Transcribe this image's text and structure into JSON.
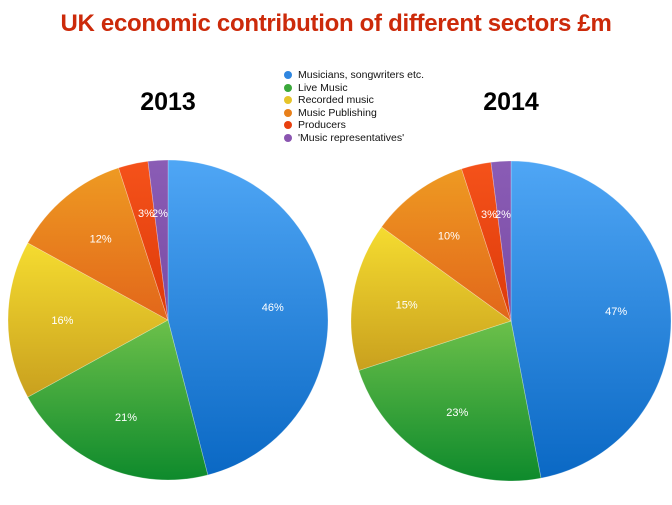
{
  "chart_data": [
    {
      "type": "pie",
      "title": "2013",
      "categories": [
        "Musicians, songwriters etc.",
        "Live Music",
        "Recorded music",
        "Music Publishing",
        "Producers",
        "'Music representatives'"
      ],
      "values": [
        46,
        21,
        16,
        12,
        3,
        2
      ],
      "labels": [
        "46%",
        "21%",
        "16%",
        "12%",
        "3%",
        "2%"
      ],
      "start": "top",
      "direction": "clockwise"
    },
    {
      "type": "pie",
      "title": "2014",
      "categories": [
        "Musicians, songwriters etc.",
        "Live Music",
        "Recorded music",
        "Music Publishing",
        "Producers",
        "'Music representatives'"
      ],
      "values": [
        47,
        23,
        15,
        10,
        3,
        2
      ],
      "labels": [
        "47%",
        "23%",
        "15%",
        "10%",
        "3%",
        "2%"
      ],
      "start": "top",
      "direction": "clockwise"
    }
  ],
  "title": "UK economic contribution of different sectors £m",
  "legend": {
    "placement": "top-center",
    "items": [
      {
        "label": "Musicians, songwriters etc.",
        "color": "#2f86e0"
      },
      {
        "label": "Live Music",
        "color": "#3aa83a"
      },
      {
        "label": "Recorded music",
        "color": "#e6c42a"
      },
      {
        "label": "Music Publishing",
        "color": "#e8801a"
      },
      {
        "label": "Producers",
        "color": "#e8400f"
      },
      {
        "label": "'Music representatives'",
        "color": "#8a55b0"
      }
    ]
  },
  "colors": {
    "title": "#cc2a0a",
    "slices": [
      {
        "light": "#4fa6f5",
        "dark": "#0a68c4"
      },
      {
        "light": "#6cc04a",
        "dark": "#0e8a2c"
      },
      {
        "light": "#f5dc30",
        "dark": "#c9a01e"
      },
      {
        "light": "#ee9a22",
        "dark": "#e2661a"
      },
      {
        "light": "#f5521a",
        "dark": "#dd3a0a"
      },
      {
        "light": "#8a5cb5",
        "dark": "#7a4ca5"
      }
    ]
  }
}
